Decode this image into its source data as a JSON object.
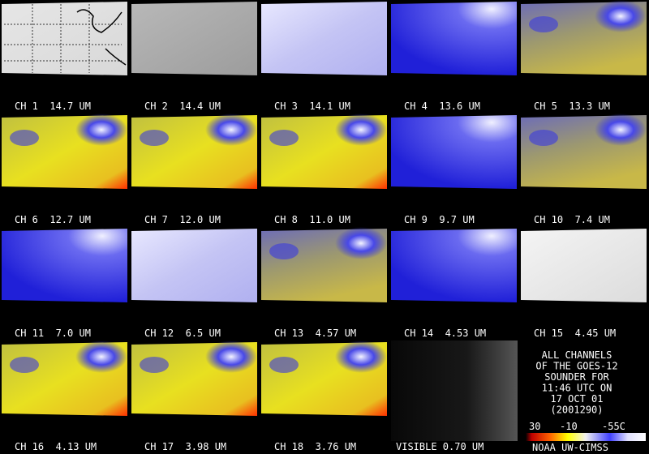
{
  "panels": [
    "CH 1  14.7 UM",
    "CH 2  14.4 UM",
    "CH 3  14.1 UM",
    "CH 4  13.6 UM",
    "CH 5  13.3 UM",
    "CH 6  12.7 UM",
    "CH 7  12.0 UM",
    "CH 8  11.0 UM",
    "CH 9  9.7 UM",
    "CH 10  7.4 UM",
    "CH 11  7.0 UM",
    "CH 12  6.5 UM",
    "CH 13  4.57 UM",
    "CH 14  4.53 UM",
    "CH 15  4.45 UM",
    "CH 16  4.13 UM",
    "CH 17  3.98 UM",
    "CH 18  3.76 UM",
    "VISIBLE 0.70 UM"
  ],
  "info": [
    "ALL CHANNELS",
    "OF THE GOES-12",
    "SOUNDER FOR",
    "11:46 UTC ON",
    "17 OCT 01",
    "(2001290)"
  ],
  "colorbar": [
    "30",
    "-10",
    "-55C"
  ],
  "credit": "NOAA UW-CIMSS"
}
